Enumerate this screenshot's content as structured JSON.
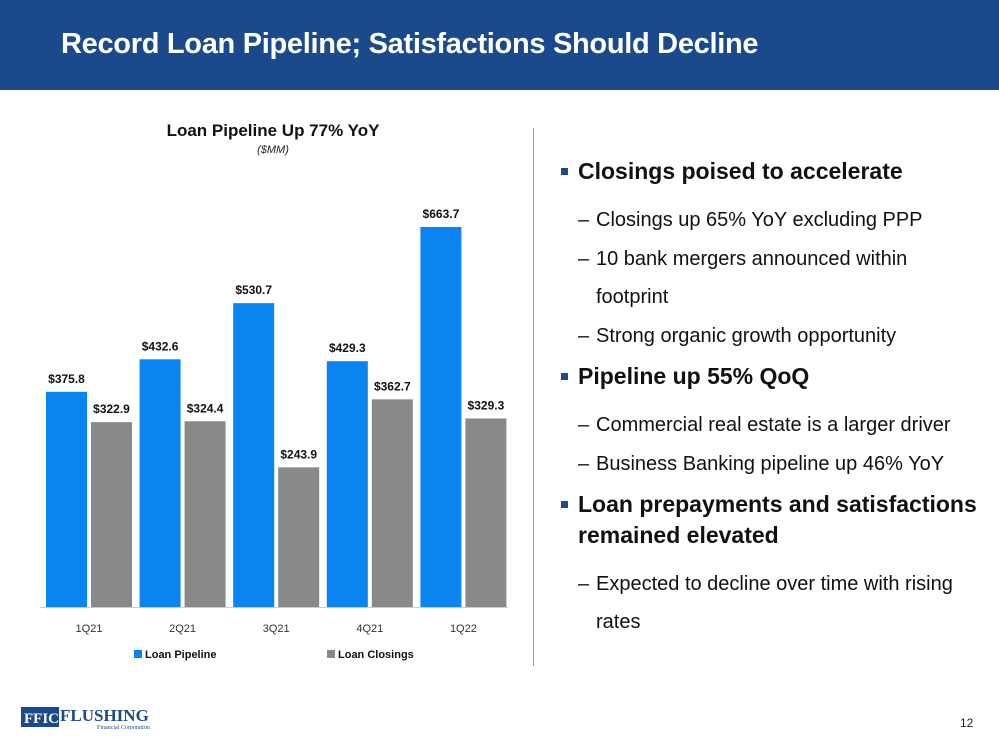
{
  "header": {
    "title": "Record Loan Pipeline; Satisfactions Should Decline"
  },
  "chart_data": {
    "type": "bar",
    "title": "Loan Pipeline Up 77% YoY",
    "subtitle": "($MM)",
    "categories": [
      "1Q21",
      "2Q21",
      "3Q21",
      "4Q21",
      "1Q22"
    ],
    "series": [
      {
        "name": "Loan Pipeline",
        "color": "#0a84f0",
        "values": [
          375.8,
          432.6,
          530.7,
          429.3,
          663.7
        ],
        "labels": [
          "$375.8",
          "$432.6",
          "$530.7",
          "$429.3",
          "$663.7"
        ]
      },
      {
        "name": "Loan Closings",
        "color": "#898989",
        "values": [
          322.9,
          324.4,
          243.9,
          362.7,
          329.3
        ],
        "labels": [
          "$322.9",
          "$324.4",
          "$243.9",
          "$362.7",
          "$329.3"
        ]
      }
    ],
    "ylim": [
      0,
      700
    ],
    "grid": false,
    "legend": "bottom"
  },
  "bullets": [
    {
      "text": "Closings poised to accelerate",
      "subs": [
        "Closings up 65% YoY excluding PPP",
        "10 bank mergers announced within footprint",
        "Strong organic growth opportunity"
      ]
    },
    {
      "text": "Pipeline up 55% QoQ",
      "subs": [
        "Commercial real estate is a larger driver",
        " Business Banking pipeline up 46% YoY"
      ]
    },
    {
      "text": "Loan prepayments and satisfactions remained elevated",
      "subs": [
        "Expected to decline over time with rising rates"
      ]
    }
  ],
  "footer": {
    "logo_text": "FFIC FLUSHING Financial Corporation",
    "page": "12"
  }
}
